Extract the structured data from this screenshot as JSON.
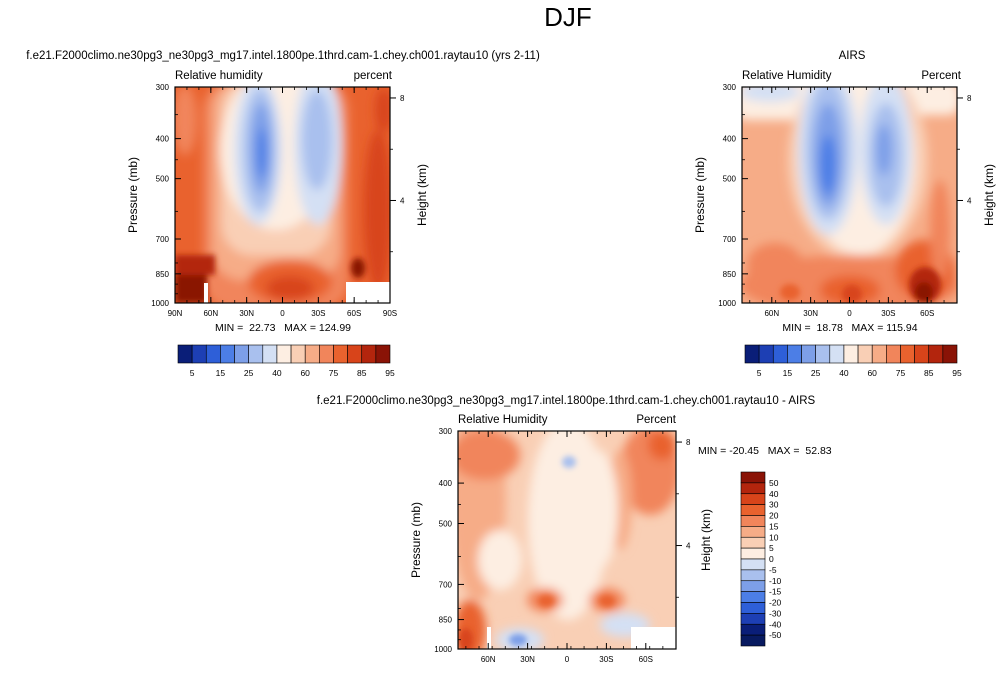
{
  "figure": {
    "title": "DJF"
  },
  "chart_data": [
    {
      "type": "heatmap",
      "panel": "model",
      "title": "f.e21.F2000climo.ne30pg3_ne30pg3_mg17.intel.1800pe.1thrd.cam-1.chey.ch001.raytau10 (yrs 2-11)",
      "left_label": "Relative humidity",
      "right_label": "percent",
      "xlabel": "",
      "ylabel": "Pressure (mb)",
      "y2label": "Height (km)",
      "x_ticks": [
        "90N",
        "60N",
        "30N",
        "0",
        "30S",
        "60S",
        "90S"
      ],
      "y_ticks": [
        "300",
        "400",
        "500",
        "700",
        "850",
        "1000"
      ],
      "y2_ticks": [
        "8",
        "4"
      ],
      "min_max": "MIN =  22.73   MAX = 124.99",
      "colorbar": {
        "orientation": "horizontal",
        "labels": [
          "5",
          "15",
          "25",
          "40",
          "60",
          "75",
          "85",
          "95"
        ],
        "colors": [
          "#0a1e78",
          "#1d3fb4",
          "#2e5fd8",
          "#4c7ee6",
          "#7d9fe8",
          "#a9c0ee",
          "#d4e0f4",
          "#fdeee2",
          "#f9cfb5",
          "#f6ac87",
          "#f1855b",
          "#e9622e",
          "#d8441a",
          "#b3250d",
          "#8a1306"
        ]
      }
    },
    {
      "type": "heatmap",
      "panel": "obs",
      "title": "AIRS",
      "left_label": "Relative Humidity",
      "right_label": "Percent",
      "xlabel": "",
      "ylabel": "Pressure (mb)",
      "y2label": "Height (km)",
      "x_ticks": [
        "60N",
        "30N",
        "0",
        "30S",
        "60S"
      ],
      "y_ticks": [
        "300",
        "400",
        "500",
        "700",
        "850",
        "1000"
      ],
      "y2_ticks": [
        "8",
        "4"
      ],
      "min_max": "MIN =  18.78   MAX = 115.94",
      "colorbar": {
        "orientation": "horizontal",
        "labels": [
          "5",
          "15",
          "25",
          "40",
          "60",
          "75",
          "85",
          "95"
        ],
        "colors": [
          "#0a1e78",
          "#1d3fb4",
          "#2e5fd8",
          "#4c7ee6",
          "#7d9fe8",
          "#a9c0ee",
          "#d4e0f4",
          "#fdeee2",
          "#f9cfb5",
          "#f6ac87",
          "#f1855b",
          "#e9622e",
          "#d8441a",
          "#b3250d",
          "#8a1306"
        ]
      }
    },
    {
      "type": "heatmap",
      "panel": "difference",
      "title": "f.e21.F2000climo.ne30pg3_ne30pg3_mg17.intel.1800pe.1thrd.cam-1.chey.ch001.raytau10 - AIRS",
      "left_label": "Relative Humidity",
      "right_label": "Percent",
      "xlabel": "",
      "ylabel": "Pressure (mb)",
      "y2label": "Height (km)",
      "x_ticks": [
        "60N",
        "30N",
        "0",
        "30S",
        "60S"
      ],
      "y_ticks": [
        "300",
        "400",
        "500",
        "700",
        "850",
        "1000"
      ],
      "y2_ticks": [
        "8",
        "4"
      ],
      "min_max": "MIN = -20.45   MAX =  52.83",
      "colorbar": {
        "orientation": "vertical",
        "labels": [
          "50",
          "40",
          "30",
          "20",
          "15",
          "10",
          "5",
          "0",
          "-5",
          "-10",
          "-15",
          "-20",
          "-30",
          "-40",
          "-50"
        ],
        "colors": [
          "#8a1306",
          "#b3250d",
          "#d8441a",
          "#e9622e",
          "#f1855b",
          "#f6ac87",
          "#f9cfb5",
          "#fdeee2",
          "#d4e0f4",
          "#a9c0ee",
          "#7d9fe8",
          "#4c7ee6",
          "#2e5fd8",
          "#1d3fb4",
          "#0a1e78",
          "#081a60"
        ]
      }
    }
  ]
}
